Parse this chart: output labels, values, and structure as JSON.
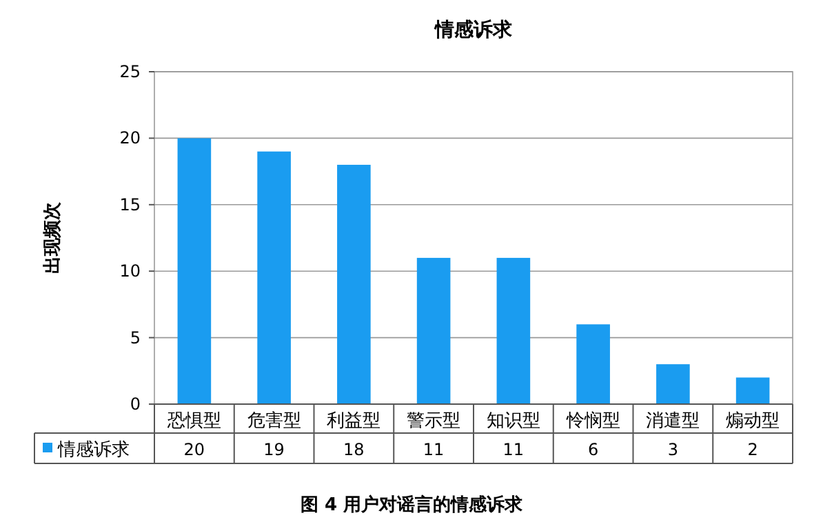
{
  "chart_data": {
    "type": "bar",
    "title": "情感诉求",
    "ylabel": "出现频次",
    "categories": [
      "恐惧型",
      "危害型",
      "利益型",
      "警示型",
      "知识型",
      "怜悯型",
      "消遣型",
      "煽动型"
    ],
    "series": [
      {
        "name": "情感诉求",
        "color": "#1a9cf0",
        "values": [
          20,
          19,
          18,
          11,
          11,
          6,
          3,
          2
        ]
      }
    ],
    "ylim": [
      0,
      25
    ],
    "yticks": [
      0,
      5,
      10,
      15,
      20,
      25
    ],
    "grid": "y",
    "legend": "bottom",
    "data_labels": true,
    "annotations": [
      "图 4 用户对谣言的情感诉求"
    ]
  }
}
